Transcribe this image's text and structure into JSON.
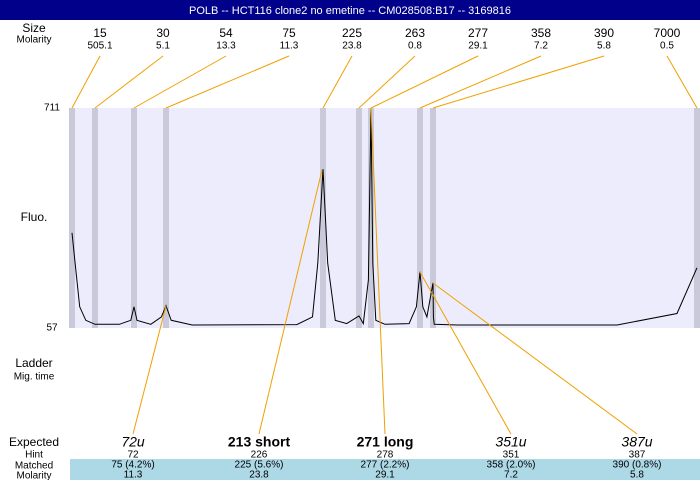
{
  "chart_data": {
    "type": "electropherogram",
    "title": "POLB -- HCT116 clone2 no emetine -- CM028508:B17 -- 3169816",
    "size_label": "Size",
    "molarity_label": "Molarity",
    "ladder_sizes": [
      15,
      30,
      54,
      75,
      225,
      263,
      277,
      358,
      390,
      7000
    ],
    "ladder_molarity": [
      505.1,
      5.1,
      13.3,
      11.3,
      23.8,
      0.8,
      29.1,
      7.2,
      5.8,
      0.5
    ],
    "ylabel": "Fluo.",
    "ylim": [
      57,
      711
    ],
    "yticks": [
      711,
      57
    ],
    "trace": {
      "x": [
        15,
        17,
        20,
        24,
        30,
        45,
        52,
        54,
        56,
        65,
        72,
        75,
        80,
        100,
        200,
        215,
        220,
        225,
        230,
        238,
        250,
        263,
        268,
        274,
        277,
        280,
        285,
        300,
        340,
        352,
        358,
        365,
        375,
        390,
        400,
        420,
        1000,
        5000,
        6500,
        7000
      ],
      "y": [
        340,
        250,
        120,
        80,
        68,
        68,
        80,
        120,
        80,
        68,
        90,
        123,
        80,
        66,
        67,
        90,
        250,
        529,
        250,
        80,
        70,
        93,
        70,
        200,
        711,
        250,
        80,
        68,
        70,
        120,
        224,
        120,
        90,
        191,
        90,
        68,
        66,
        66,
        100,
        236
      ]
    },
    "ladder_label": "Ladder",
    "migtime_label": "Mig. time",
    "row_labels": {
      "expected": "Expected",
      "hint": "Hint",
      "matched": "Matched",
      "molarity": "Molarity"
    },
    "samples": [
      {
        "expected": "72u",
        "hint": 72,
        "matched": "75 (4.2%)",
        "molarity": 11.3
      },
      {
        "expected": "213 short",
        "hint": 226,
        "matched": "225 (5.6%)",
        "molarity": 23.8
      },
      {
        "expected": "271 long",
        "hint": 278,
        "matched": "277 (2.2%)",
        "molarity": 29.1
      },
      {
        "expected": "351u",
        "hint": 351,
        "matched": "358 (2.0%)",
        "molarity": 7.2
      },
      {
        "expected": "387u",
        "hint": 387,
        "matched": "390 (0.8%)",
        "molarity": 5.8
      }
    ]
  }
}
